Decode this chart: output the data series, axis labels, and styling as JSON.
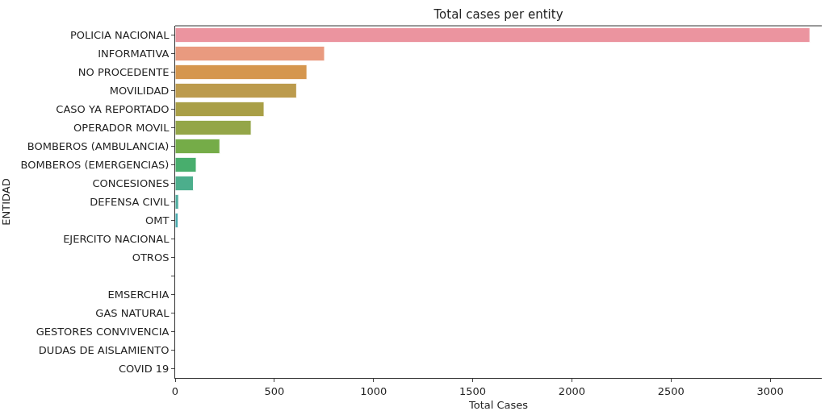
{
  "chart_data": {
    "type": "bar",
    "orientation": "horizontal",
    "title": "Total cases per entity",
    "xlabel": "Total Cases",
    "ylabel": "ENTIDAD",
    "categories": [
      "POLICIA NACIONAL",
      "INFORMATIVA",
      "NO PROCEDENTE",
      "MOVILIDAD",
      "CASO YA REPORTADO",
      "OPERADOR MOVIL",
      "BOMBEROS (AMBULANCIA)",
      "BOMBEROS (EMERGENCIAS)",
      "CONCESIONES",
      "DEFENSA CIVIL",
      "OMT",
      "EJERCITO NACIONAL",
      "OTROS",
      null,
      "EMSERCHIA",
      "GAS NATURAL",
      "GESTORES CONVIVENCIA",
      "DUDAS DE AISLAMIENTO",
      "COVID 19"
    ],
    "values": [
      3200,
      753,
      664,
      612,
      448,
      383,
      225,
      106,
      92,
      17,
      15,
      null,
      null,
      null,
      null,
      null,
      null,
      null,
      null
    ],
    "colors": [
      "#eb949f",
      "#e99a7f",
      "#d5964e",
      "#bc9b4d",
      "#a99f46",
      "#94a648",
      "#75ac48",
      "#48ae6d",
      "#4cae8c",
      "#4fad9f",
      "#4aabaf",
      "#4ea9bf",
      "#53a5d2",
      "#7a9de2",
      "#a094e6",
      "#c088e5",
      "#d981d6",
      "#e586c0",
      "#e98cae"
    ],
    "xlim": [
      0,
      3260
    ],
    "xticks": [
      0,
      500,
      1000,
      1500,
      2000,
      2500,
      3000
    ],
    "grid": false,
    "legend": false
  }
}
